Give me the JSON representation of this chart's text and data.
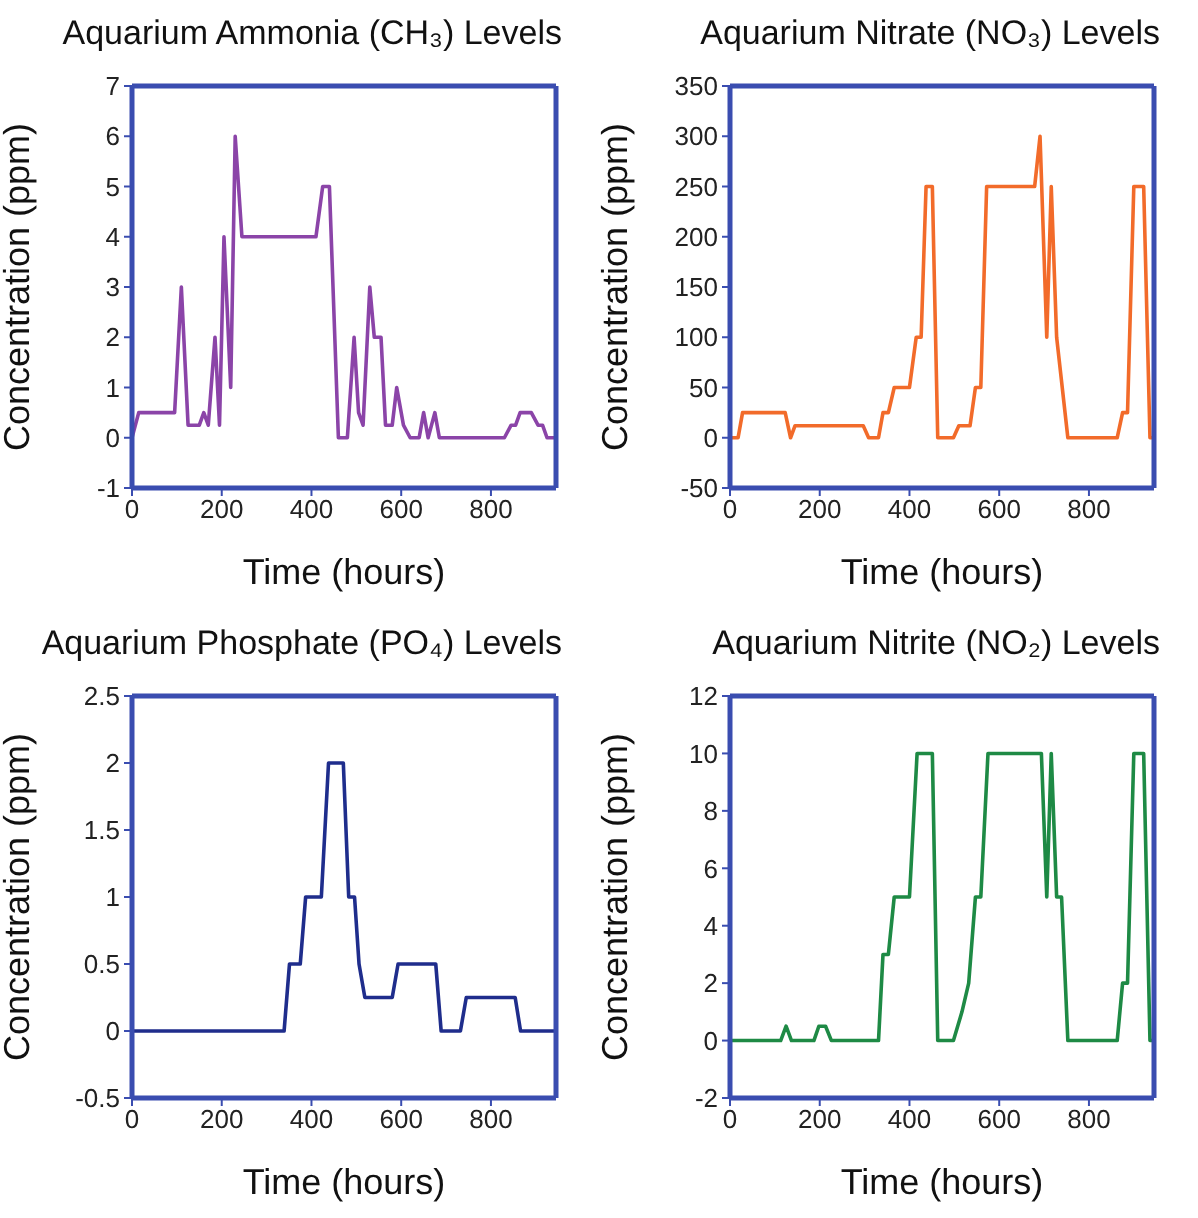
{
  "chart_data": [
    {
      "type": "line",
      "title": "Aquarium Ammonia (CH₃) Levels",
      "xlabel": "Time (hours)",
      "ylabel": "Concentration (ppm)",
      "marker": "none",
      "xlim": [
        0,
        945
      ],
      "xticks": [
        0,
        200,
        400,
        600,
        800
      ],
      "ylim": [
        -1,
        7
      ],
      "yticks": [
        -1,
        0,
        1,
        2,
        3,
        4,
        5,
        6,
        7
      ],
      "x": [
        0,
        15,
        95,
        110,
        125,
        150,
        160,
        170,
        185,
        195,
        205,
        220,
        230,
        245,
        410,
        425,
        440,
        460,
        480,
        495,
        505,
        515,
        530,
        540,
        555,
        565,
        580,
        590,
        605,
        620,
        640,
        650,
        660,
        675,
        685,
        830,
        845,
        855,
        865,
        890,
        905,
        915,
        925,
        945
      ],
      "series": [
        {
          "color": "#8b44a8",
          "values": [
            0,
            0.5,
            0.5,
            3,
            0.25,
            0.25,
            0.5,
            0.25,
            2,
            0.25,
            4,
            1,
            6,
            4,
            4,
            5,
            5,
            0,
            0,
            2,
            0.5,
            0.25,
            3,
            2,
            2,
            0.25,
            0.25,
            1,
            0.25,
            0,
            0,
            0.5,
            0,
            0.5,
            0,
            0,
            0.25,
            0.25,
            0.5,
            0.5,
            0.25,
            0.25,
            0,
            0
          ]
        }
      ]
    },
    {
      "type": "line",
      "title": "Aquarium Nitrate (NO₃) Levels",
      "xlabel": "Time (hours)",
      "ylabel": "Concentration (ppm)",
      "marker": "none",
      "xlim": [
        0,
        945
      ],
      "xticks": [
        0,
        200,
        400,
        600,
        800
      ],
      "ylim": [
        -50,
        350
      ],
      "yticks": [
        -50,
        0,
        50,
        100,
        150,
        200,
        250,
        300,
        350
      ],
      "x": [
        0,
        18,
        28,
        123,
        135,
        145,
        297,
        309,
        331,
        341,
        353,
        366,
        400,
        415,
        426,
        437,
        451,
        463,
        498,
        510,
        535,
        547,
        559,
        572,
        679,
        691,
        706,
        716,
        728,
        753,
        863,
        875,
        886,
        900,
        922,
        936,
        945
      ],
      "series": [
        {
          "color": "#f26b2a",
          "values": [
            0,
            0,
            25,
            25,
            0,
            12,
            12,
            0,
            0,
            25,
            25,
            50,
            50,
            100,
            100,
            250,
            250,
            0,
            0,
            12,
            12,
            50,
            50,
            250,
            250,
            300,
            100,
            250,
            100,
            0,
            0,
            25,
            25,
            250,
            250,
            0,
            0
          ]
        }
      ]
    },
    {
      "type": "line",
      "title": "Aquarium Phosphate (PO₄) Levels",
      "xlabel": "Time (hours)",
      "ylabel": "Concentration (ppm)",
      "marker": "none",
      "xlim": [
        0,
        945
      ],
      "xticks": [
        0,
        200,
        400,
        600,
        800
      ],
      "ylim": [
        -0.5,
        2.5
      ],
      "yticks": [
        -0.5,
        0,
        0.5,
        1,
        1.5,
        2,
        2.5
      ],
      "x": [
        0,
        339,
        351,
        375,
        387,
        422,
        438,
        471,
        483,
        496,
        506,
        519,
        580,
        593,
        677,
        689,
        732,
        745,
        854,
        866,
        945
      ],
      "series": [
        {
          "color": "#1f2d8c",
          "values": [
            0,
            0,
            0.5,
            0.5,
            1,
            1,
            2,
            2,
            1,
            1,
            0.5,
            0.25,
            0.25,
            0.5,
            0.5,
            0,
            0,
            0.25,
            0.25,
            0,
            0
          ]
        }
      ]
    },
    {
      "type": "line",
      "title": "Aquarium Nitrite (NO₂) Levels",
      "xlabel": "Time (hours)",
      "ylabel": "Concentration (ppm)",
      "marker": "none",
      "xlim": [
        0,
        945
      ],
      "xticks": [
        0,
        200,
        400,
        600,
        800
      ],
      "ylim": [
        -2,
        12
      ],
      "yticks": [
        -2,
        0,
        2,
        4,
        6,
        8,
        10,
        12
      ],
      "x": [
        0,
        113,
        125,
        137,
        187,
        198,
        213,
        226,
        331,
        341,
        353,
        366,
        400,
        417,
        451,
        463,
        498,
        517,
        532,
        547,
        559,
        575,
        694,
        706,
        716,
        728,
        739,
        753,
        863,
        875,
        886,
        900,
        922,
        936,
        945
      ],
      "series": [
        {
          "color": "#1e8a45",
          "values": [
            0,
            0,
            0.5,
            0,
            0,
            0.5,
            0.5,
            0,
            0,
            3,
            3,
            5,
            5,
            10,
            10,
            0,
            0,
            1,
            2,
            5,
            5,
            10,
            10,
            5,
            10,
            5,
            5,
            0,
            0,
            2,
            2,
            10,
            10,
            0,
            0
          ]
        }
      ]
    }
  ]
}
